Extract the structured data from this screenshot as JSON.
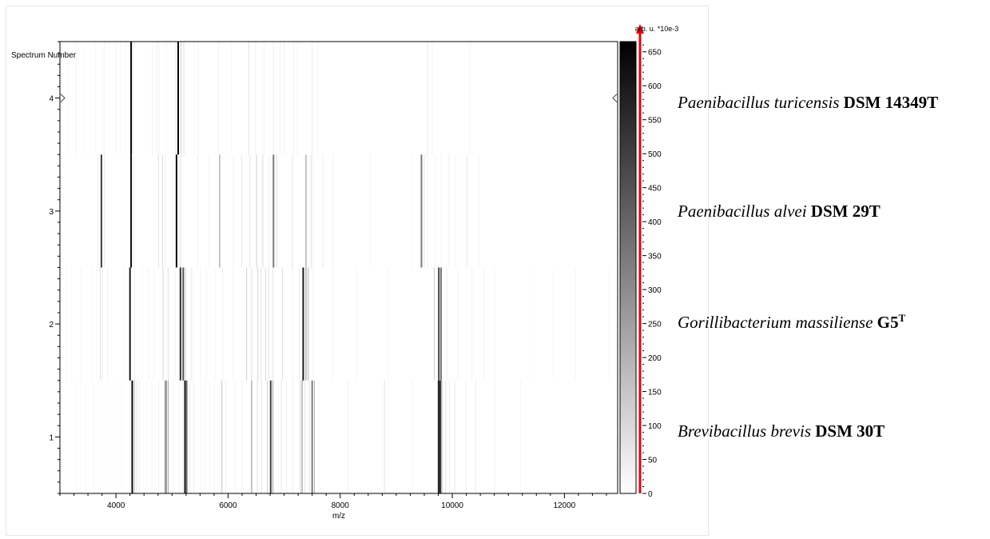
{
  "chart_data": {
    "type": "heatmap",
    "ylabel": "Spectrum Number",
    "xlabel": "m/z",
    "colorbar_label": "arb. u. *10e-3",
    "xlim": [
      3000,
      12950
    ],
    "ylim": [
      0.5,
      4.5
    ],
    "x_ticks": [
      4000,
      6000,
      8000,
      10000,
      12000
    ],
    "y_ticks": [
      1,
      2,
      3,
      4
    ],
    "colorbar_range": [
      0,
      665
    ],
    "colorbar_ticks": [
      0,
      50,
      100,
      150,
      200,
      250,
      300,
      350,
      400,
      450,
      500,
      550,
      600,
      650
    ],
    "colormap": [
      "#ffffff",
      "#000000"
    ],
    "colorbar_arrow_color": "#e8000b",
    "spectra": [
      {
        "spectrum_number": 1,
        "peaks": [
          [
            3310,
            15
          ],
          [
            3370,
            10
          ],
          [
            3460,
            12
          ],
          [
            3600,
            18
          ],
          [
            3690,
            15
          ],
          [
            3760,
            10
          ],
          [
            3830,
            12
          ],
          [
            3960,
            10
          ],
          [
            4100,
            12
          ],
          [
            4250,
            25
          ],
          [
            4290,
            640
          ],
          [
            4330,
            160
          ],
          [
            4370,
            60
          ],
          [
            4420,
            40
          ],
          [
            4530,
            25
          ],
          [
            4640,
            25
          ],
          [
            4760,
            40
          ],
          [
            4860,
            80
          ],
          [
            4890,
            350
          ],
          [
            4930,
            250
          ],
          [
            5020,
            40
          ],
          [
            5120,
            30
          ],
          [
            5230,
            570
          ],
          [
            5260,
            400
          ],
          [
            5320,
            60
          ],
          [
            5390,
            40
          ],
          [
            5510,
            30
          ],
          [
            5590,
            30
          ],
          [
            5670,
            25
          ],
          [
            5750,
            25
          ],
          [
            5890,
            150
          ],
          [
            5960,
            40
          ],
          [
            6120,
            30
          ],
          [
            6250,
            40
          ],
          [
            6420,
            300
          ],
          [
            6520,
            80
          ],
          [
            6600,
            60
          ],
          [
            6700,
            120
          ],
          [
            6760,
            500
          ],
          [
            6800,
            250
          ],
          [
            6950,
            60
          ],
          [
            7040,
            40
          ],
          [
            7160,
            40
          ],
          [
            7290,
            110
          ],
          [
            7320,
            300
          ],
          [
            7370,
            60
          ],
          [
            7450,
            70
          ],
          [
            7500,
            350
          ],
          [
            7540,
            200
          ],
          [
            7620,
            25
          ],
          [
            8140,
            35
          ],
          [
            8790,
            70
          ],
          [
            9290,
            35
          ],
          [
            9740,
            120
          ],
          [
            9760,
            640
          ],
          [
            9790,
            550
          ],
          [
            9820,
            110
          ],
          [
            9880,
            60
          ],
          [
            9950,
            40
          ],
          [
            10050,
            50
          ],
          [
            10240,
            40
          ],
          [
            10420,
            55
          ],
          [
            10760,
            30
          ],
          [
            11220,
            25
          ]
        ]
      },
      {
        "spectrum_number": 2,
        "peaks": [
          [
            3130,
            15
          ],
          [
            3210,
            15
          ],
          [
            3380,
            25
          ],
          [
            3570,
            15
          ],
          [
            3660,
            25
          ],
          [
            3720,
            80
          ],
          [
            3760,
            40
          ],
          [
            3850,
            35
          ],
          [
            4130,
            15
          ],
          [
            4250,
            600
          ],
          [
            4330,
            30
          ],
          [
            4470,
            25
          ],
          [
            4580,
            35
          ],
          [
            4680,
            25
          ],
          [
            4840,
            110
          ],
          [
            4930,
            80
          ],
          [
            5060,
            25
          ],
          [
            5150,
            550
          ],
          [
            5200,
            450
          ],
          [
            5240,
            120
          ],
          [
            5350,
            60
          ],
          [
            5510,
            30
          ],
          [
            5610,
            25
          ],
          [
            5770,
            25
          ],
          [
            5910,
            30
          ],
          [
            6090,
            30
          ],
          [
            6330,
            120
          ],
          [
            6420,
            80
          ],
          [
            6530,
            110
          ],
          [
            6590,
            70
          ],
          [
            6670,
            90
          ],
          [
            6720,
            70
          ],
          [
            6800,
            70
          ],
          [
            6970,
            80
          ],
          [
            7150,
            40
          ],
          [
            7270,
            60
          ],
          [
            7340,
            600
          ],
          [
            7390,
            300
          ],
          [
            7430,
            200
          ],
          [
            7520,
            40
          ],
          [
            7870,
            25
          ],
          [
            8300,
            25
          ],
          [
            8850,
            25
          ],
          [
            9680,
            130
          ],
          [
            9760,
            500
          ],
          [
            9800,
            350
          ],
          [
            9900,
            50
          ],
          [
            10100,
            30
          ],
          [
            10350,
            30
          ],
          [
            10570,
            30
          ],
          [
            10760,
            15
          ],
          [
            11450,
            15
          ],
          [
            11800,
            15
          ],
          [
            12200,
            30
          ],
          [
            12800,
            20
          ]
        ]
      },
      {
        "spectrum_number": 3,
        "peaks": [
          [
            3680,
            40
          ],
          [
            3740,
            500
          ],
          [
            3790,
            60
          ],
          [
            4270,
            640
          ],
          [
            4330,
            30
          ],
          [
            4760,
            70
          ],
          [
            4830,
            90
          ],
          [
            4880,
            50
          ],
          [
            5080,
            640
          ],
          [
            5150,
            80
          ],
          [
            5460,
            35
          ],
          [
            5660,
            30
          ],
          [
            5850,
            300
          ],
          [
            6100,
            30
          ],
          [
            6240,
            70
          ],
          [
            6390,
            60
          ],
          [
            6510,
            120
          ],
          [
            6620,
            90
          ],
          [
            6730,
            40
          ],
          [
            6810,
            350
          ],
          [
            6870,
            80
          ],
          [
            7150,
            60
          ],
          [
            7390,
            300
          ],
          [
            7480,
            80
          ],
          [
            7520,
            40
          ],
          [
            7690,
            45
          ],
          [
            7870,
            30
          ],
          [
            8540,
            25
          ],
          [
            9290,
            25
          ],
          [
            9450,
            350
          ],
          [
            9500,
            80
          ],
          [
            9560,
            45
          ],
          [
            9700,
            35
          ],
          [
            9800,
            25
          ],
          [
            9940,
            40
          ],
          [
            10060,
            25
          ],
          [
            10260,
            60
          ],
          [
            10470,
            40
          ]
        ]
      },
      {
        "spectrum_number": 4,
        "peaks": [
          [
            3160,
            15
          ],
          [
            3290,
            25
          ],
          [
            3450,
            15
          ],
          [
            3630,
            25
          ],
          [
            3790,
            30
          ],
          [
            3890,
            15
          ],
          [
            4000,
            25
          ],
          [
            4080,
            20
          ],
          [
            4180,
            15
          ],
          [
            4270,
            660
          ],
          [
            4310,
            50
          ],
          [
            4650,
            30
          ],
          [
            4730,
            50
          ],
          [
            4770,
            30
          ],
          [
            4900,
            25
          ],
          [
            5070,
            60
          ],
          [
            5110,
            660
          ],
          [
            5160,
            120
          ],
          [
            5210,
            80
          ],
          [
            5400,
            25
          ],
          [
            5470,
            30
          ],
          [
            5830,
            30
          ],
          [
            6060,
            25
          ],
          [
            6370,
            70
          ],
          [
            6490,
            40
          ],
          [
            6640,
            35
          ],
          [
            6810,
            50
          ],
          [
            6930,
            30
          ],
          [
            7000,
            40
          ],
          [
            7170,
            35
          ],
          [
            7240,
            30
          ],
          [
            7500,
            40
          ],
          [
            7600,
            25
          ],
          [
            9560,
            60
          ],
          [
            9640,
            30
          ],
          [
            10310,
            25
          ]
        ]
      }
    ]
  },
  "annotations": [
    {
      "name": "Paenibacillus turicensis",
      "strain": "DSM 14349T",
      "sup": ""
    },
    {
      "name": "Paenibacillus alvei",
      "strain": "DSM 29T",
      "sup": ""
    },
    {
      "name": "Gorillibacterium massiliense",
      "strain": "G5",
      "sup": "T"
    },
    {
      "name": "Brevibacillus brevis",
      "strain": "DSM 30T",
      "sup": ""
    }
  ]
}
